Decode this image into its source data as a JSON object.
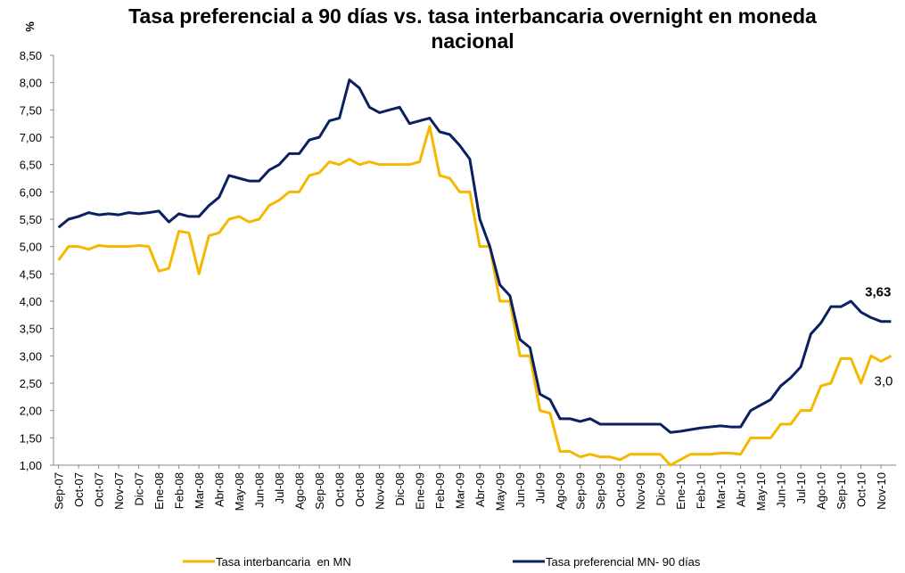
{
  "chart_data": {
    "type": "line",
    "title": "Tasa preferencial a 90 días vs. tasa interbancaria overnight en moneda nacional",
    "y_label": "%",
    "categories": [
      "Sep-07",
      null,
      "Oct-07",
      null,
      "Oct-07",
      null,
      "Nov-07",
      null,
      "Dic-07",
      null,
      "Ene-08",
      null,
      "Feb-08",
      null,
      "Mar-08",
      null,
      "Abr-08",
      null,
      "May-08",
      null,
      "Jun-08",
      null,
      "Jul-08",
      null,
      "Ago-08",
      null,
      "Sep-08",
      null,
      "Oct-08",
      null,
      "Oct-08",
      null,
      "Nov-08",
      null,
      "Dic-08",
      null,
      "Ene-09",
      null,
      "Feb-09",
      null,
      "Mar-09",
      null,
      "Abr-09",
      null,
      "May-09",
      null,
      "Jun-09",
      null,
      "Jul-09",
      null,
      "Ago-09",
      null,
      "Sep-09",
      null,
      "Sep-09",
      null,
      "Oct-09",
      null,
      "Nov-09",
      null,
      "Dic-09",
      null,
      "Ene-10",
      null,
      "Feb-10",
      null,
      "Mar-10",
      null,
      "Abr-10",
      null,
      "May-10",
      null,
      "Jun-10",
      null,
      "Jul-10",
      null,
      "Ago-10",
      null,
      "Sep-10",
      null,
      "Oct-10",
      null,
      "Nov-10",
      null
    ],
    "series": [
      {
        "name": "Tasa interbancaria  en MN",
        "color": "#f5b800",
        "values": [
          4.75,
          5.0,
          5.0,
          4.95,
          5.02,
          5.0,
          5.0,
          5.0,
          5.02,
          5.0,
          4.55,
          4.6,
          5.28,
          5.25,
          4.5,
          5.2,
          5.25,
          5.5,
          5.55,
          5.45,
          5.5,
          5.75,
          5.85,
          6.0,
          6.0,
          6.3,
          6.35,
          6.55,
          6.5,
          6.6,
          6.5,
          6.55,
          6.5,
          6.5,
          6.5,
          6.5,
          6.55,
          7.2,
          6.3,
          6.25,
          6.0,
          6.0,
          5.0,
          5.0,
          4.0,
          4.0,
          3.0,
          3.0,
          2.0,
          1.95,
          1.25,
          1.25,
          1.15,
          1.2,
          1.15,
          1.15,
          1.1,
          1.2,
          1.2,
          1.2,
          1.2,
          1.0,
          1.1,
          1.2,
          1.2,
          1.2,
          1.22,
          1.22,
          1.2,
          1.5,
          1.5,
          1.5,
          1.75,
          1.75,
          2.0,
          2.0,
          2.45,
          2.5,
          2.95,
          2.95,
          2.5,
          3.0,
          2.9,
          3.0
        ]
      },
      {
        "name": "Tasa preferencial MN- 90 días",
        "color": "#0a2060",
        "values": [
          5.35,
          5.5,
          5.55,
          5.62,
          5.58,
          5.6,
          5.58,
          5.62,
          5.6,
          5.62,
          5.65,
          5.45,
          5.6,
          5.55,
          5.55,
          5.75,
          5.9,
          6.3,
          6.25,
          6.2,
          6.2,
          6.4,
          6.5,
          6.7,
          6.7,
          6.95,
          7.0,
          7.3,
          7.35,
          8.05,
          7.9,
          7.55,
          7.45,
          7.5,
          7.55,
          7.25,
          7.3,
          7.35,
          7.1,
          7.05,
          6.85,
          6.6,
          5.5,
          5.0,
          4.3,
          4.1,
          3.3,
          3.15,
          2.3,
          2.2,
          1.85,
          1.85,
          1.8,
          1.85,
          1.75,
          1.75,
          1.75,
          1.75,
          1.75,
          1.75,
          1.75,
          1.6,
          1.62,
          1.65,
          1.68,
          1.7,
          1.72,
          1.7,
          1.7,
          2.0,
          2.1,
          2.2,
          2.45,
          2.6,
          2.8,
          3.4,
          3.6,
          3.9,
          3.9,
          4.0,
          3.8,
          3.7,
          3.63,
          3.63
        ]
      }
    ],
    "annotations": [
      {
        "text": "3,63",
        "value": 3.63
      },
      {
        "text": "3,0",
        "value": 3.0
      }
    ],
    "ylim": [
      1,
      8.5
    ],
    "yticks": [
      {
        "value": 1,
        "label": "1,00"
      },
      {
        "value": 1.5,
        "label": "1,50"
      },
      {
        "value": 2,
        "label": "2,00"
      },
      {
        "value": 2.5,
        "label": "2,50"
      },
      {
        "value": 3,
        "label": "3,00"
      },
      {
        "value": 3.5,
        "label": "3,50"
      },
      {
        "value": 4,
        "label": "4,00"
      },
      {
        "value": 4.5,
        "label": "4,50"
      },
      {
        "value": 5,
        "label": "5,00"
      },
      {
        "value": 5.5,
        "label": "5,50"
      },
      {
        "value": 6,
        "label": "6,00"
      },
      {
        "value": 6.5,
        "label": "6,50"
      },
      {
        "value": 7,
        "label": "7,00"
      },
      {
        "value": 7.5,
        "label": "7,50"
      },
      {
        "value": 8,
        "label": "8,00"
      },
      {
        "value": 8.5,
        "label": "8,50"
      }
    ],
    "grid": false,
    "legend": "bottom"
  }
}
